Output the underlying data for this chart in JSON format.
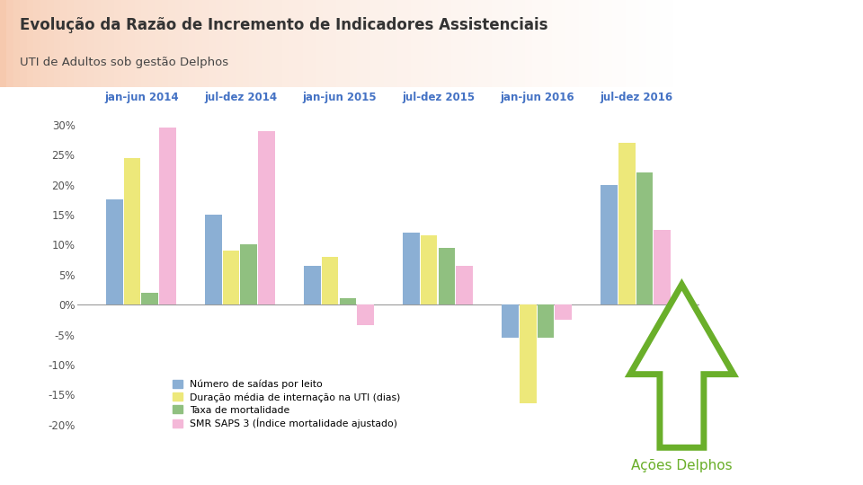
{
  "title": "Evolução da Razão de Incremento de Indicadores Assistenciais",
  "subtitle": "UTI de Adultos sob gestão Delphos",
  "categories": [
    "jan-jun 2014",
    "jul-dez 2014",
    "jan-jun 2015",
    "jul-dez 2015",
    "jan-jun 2016",
    "jul-dez 2016"
  ],
  "series": {
    "Número de saídas por leito": [
      17.5,
      15.0,
      6.5,
      12.0,
      -5.5,
      20.0
    ],
    "Duração média de internação na UTI (dias)": [
      24.5,
      9.0,
      8.0,
      11.5,
      -16.5,
      27.0
    ],
    "Taxa de mortalidade": [
      2.0,
      10.0,
      1.0,
      9.5,
      -5.5,
      22.0
    ],
    "SMR SAPS 3 (Índice mortalidade ajustado)": [
      29.5,
      29.0,
      -3.5,
      6.5,
      -2.5,
      12.5
    ]
  },
  "colors": {
    "Número de saídas por leito": "#8BAFD4",
    "Duração média de internação na UTI (dias)": "#EDE87A",
    "Taxa de mortalidade": "#90C080",
    "SMR SAPS 3 (Índice mortalidade ajustado)": "#F4B8D8"
  },
  "ylim": [
    -22,
    33
  ],
  "yticks": [
    -20,
    -15,
    -10,
    -5,
    0,
    5,
    10,
    15,
    20,
    25,
    30
  ],
  "category_color": "#4472C4",
  "title_color": "#333333",
  "subtitle_color": "#444444",
  "background_color": "#FFFFFF",
  "header_bg_left": "#F5C8A8",
  "header_bg_right": "#FFFFFF",
  "acoes_text": "Ações Delphos",
  "acoes_color": "#6AAF2A",
  "legend_items": [
    "Número de saídas por leito",
    "Duração média de internação na UTI (dias)",
    "Taxa de mortalidade",
    "SMR SAPS 3 (Índice mortalidade ajustado)"
  ]
}
